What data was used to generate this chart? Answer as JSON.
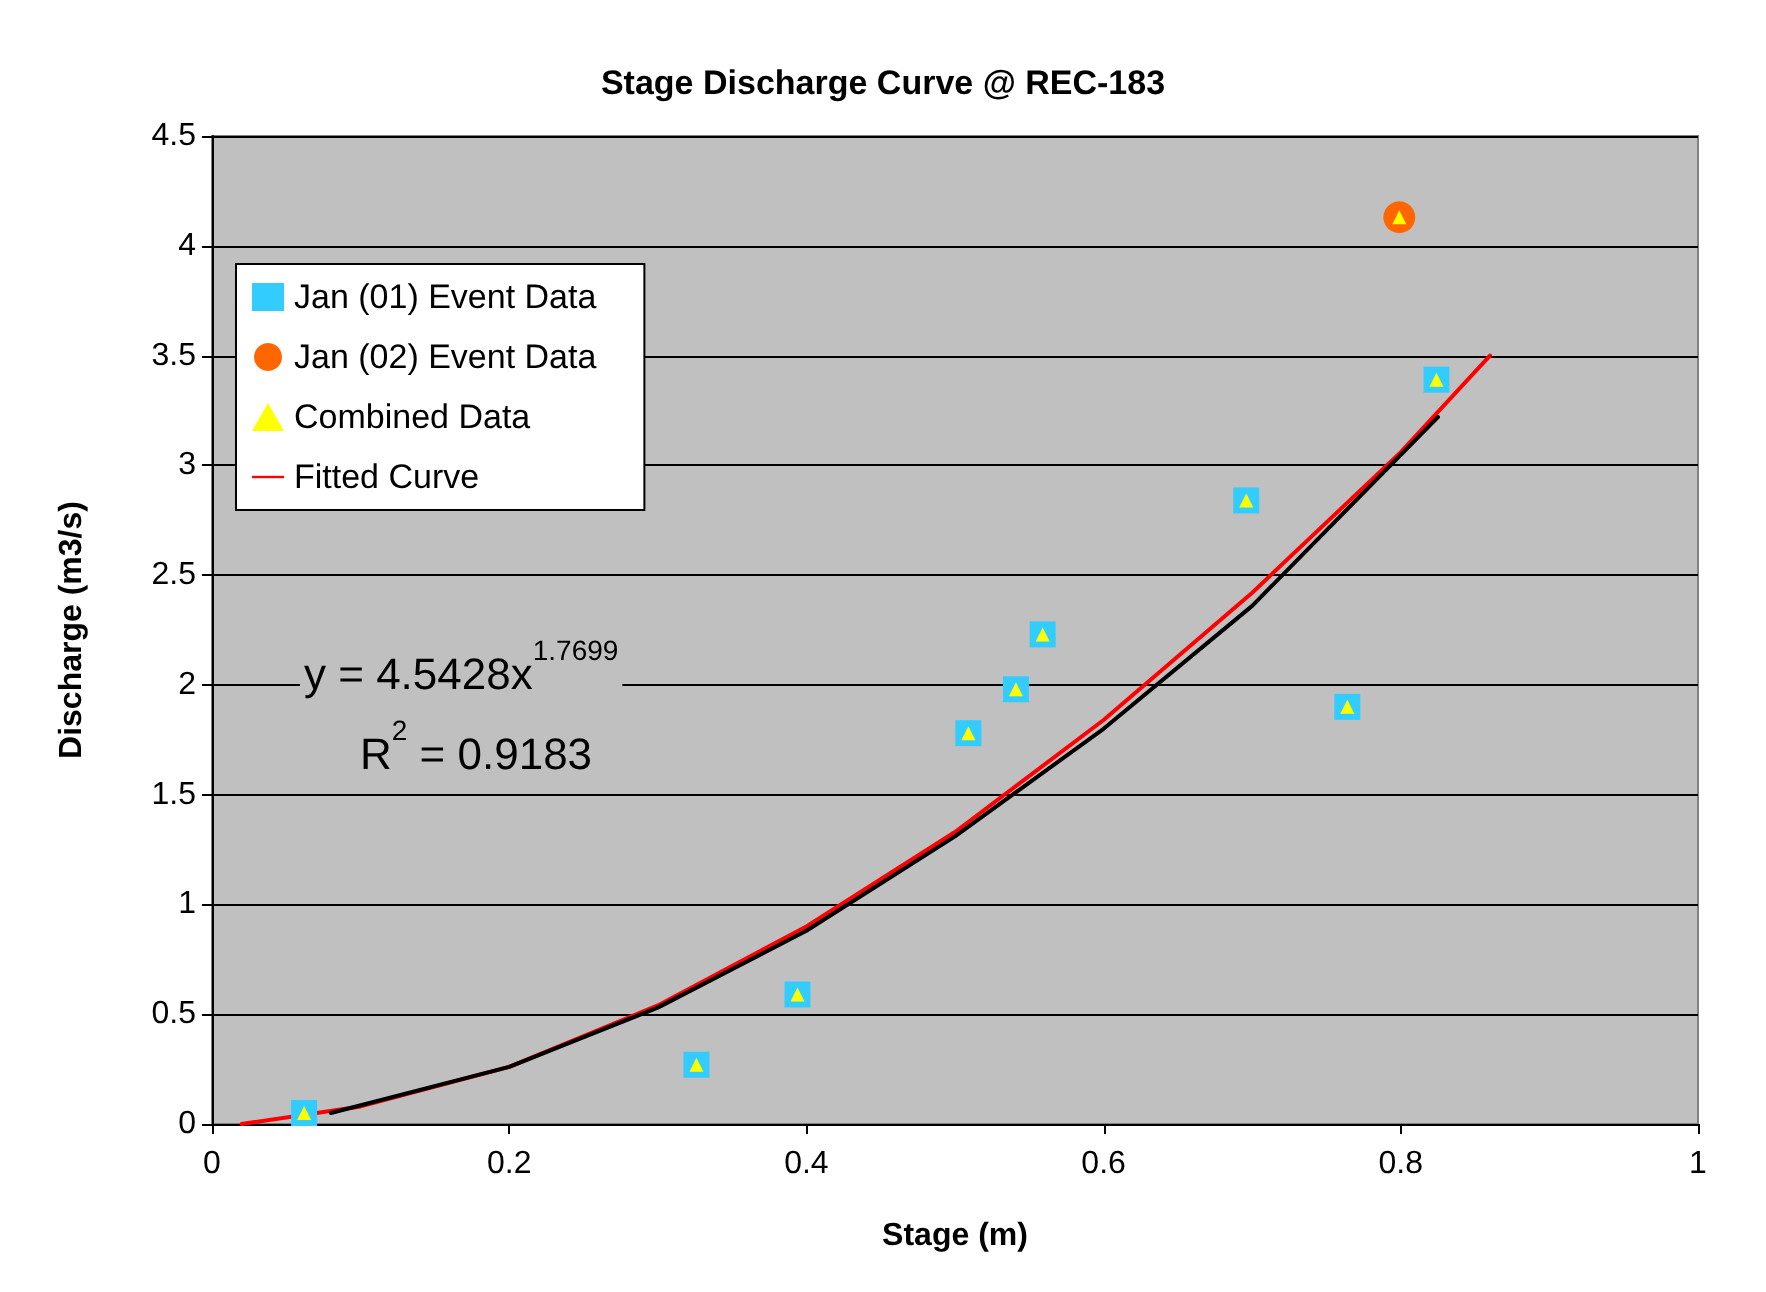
{
  "chart_data": {
    "type": "scatter",
    "title": "Stage Discharge Curve @ REC-183",
    "xlabel": "Stage (m)",
    "ylabel": "Discharge (m3/s)",
    "xlim": [
      0,
      1
    ],
    "xticks": [
      0,
      0.2,
      0.4,
      0.6,
      0.8,
      1
    ],
    "ylim": [
      0,
      4.5
    ],
    "yticks": [
      0,
      0.5,
      1,
      1.5,
      2,
      2.5,
      3,
      3.5,
      4,
      4.5
    ],
    "grid": "y",
    "legend": "top left",
    "series": [
      {
        "name": "Jan (01) Event Data",
        "marker": "square",
        "color": "#33ccff",
        "x": [
          0.062,
          0.326,
          0.394,
          0.509,
          0.541,
          0.559,
          0.696,
          0.764,
          0.824
        ],
        "values": [
          0.05,
          0.27,
          0.59,
          1.78,
          1.98,
          2.23,
          2.84,
          1.9,
          3.39
        ]
      },
      {
        "name": "Jan (02) Event Data",
        "marker": "circle",
        "color": "#ff6600",
        "x": [
          0.799
        ],
        "values": [
          4.13
        ]
      },
      {
        "name": "Combined Data",
        "marker": "triangle",
        "color": "#ffff00",
        "x": [
          0.062,
          0.326,
          0.394,
          0.509,
          0.541,
          0.559,
          0.696,
          0.764,
          0.799,
          0.824
        ],
        "values": [
          0.05,
          0.27,
          0.59,
          1.78,
          1.98,
          2.23,
          2.84,
          1.9,
          4.13,
          3.39
        ]
      },
      {
        "name": "Fitted Curve",
        "type": "line",
        "marker": "none",
        "line_style": "solid",
        "color": "#ff0000",
        "x": [
          0.02,
          0.1,
          0.2,
          0.3,
          0.4,
          0.5,
          0.6,
          0.7,
          0.8,
          0.86
        ],
        "values": [
          0,
          0.08,
          0.26,
          0.54,
          0.9,
          1.33,
          1.84,
          2.42,
          3.06,
          3.5
        ]
      },
      {
        "type": "line",
        "marker": "none",
        "line_style": "solid",
        "color": "#000000",
        "x": [
          0.08,
          0.2,
          0.3,
          0.4,
          0.5,
          0.6,
          0.7,
          0.825
        ],
        "values": [
          0.05,
          0.26,
          0.53,
          0.88,
          1.31,
          1.8,
          2.36,
          3.22
        ]
      }
    ],
    "annotations": [
      "y = 4.5428x$^{1.7699}$",
      "R$^{2}$ = 0.9183"
    ]
  }
}
